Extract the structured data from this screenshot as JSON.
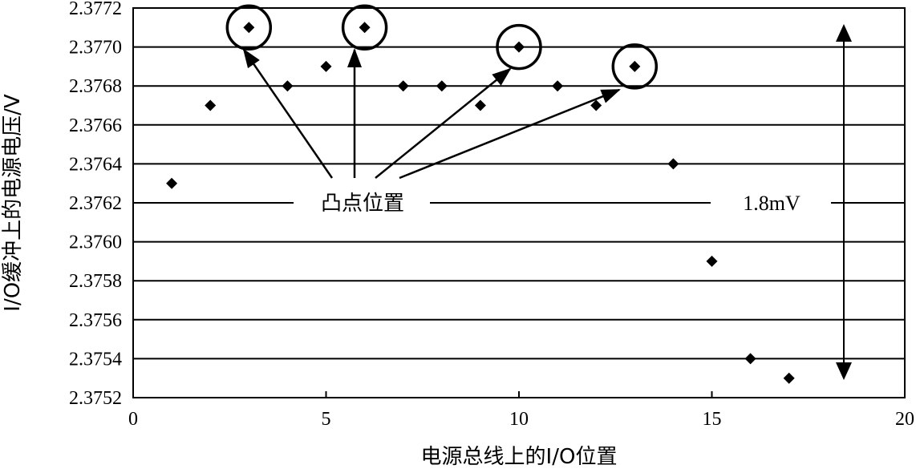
{
  "chart_data": {
    "type": "scatter",
    "title": "",
    "xlabel": "电源总线上的I/O位置",
    "ylabel": "I/O缓冲上的电源电压/V",
    "xlim": [
      0,
      20
    ],
    "ylim": [
      2.3752,
      2.3772
    ],
    "x_ticks": [
      0,
      5,
      10,
      15,
      20
    ],
    "y_ticks": [
      "2.3752",
      "2.3754",
      "2.3756",
      "2.3758",
      "2.3760",
      "2.3762",
      "2.3764",
      "2.3766",
      "2.3768",
      "2.3770",
      "2.3772"
    ],
    "grid": "horizontal",
    "marker": "diamond",
    "points": [
      {
        "x": 1,
        "y": 2.3763
      },
      {
        "x": 2,
        "y": 2.3767
      },
      {
        "x": 3,
        "y": 2.3771
      },
      {
        "x": 4,
        "y": 2.3768
      },
      {
        "x": 5,
        "y": 2.3769
      },
      {
        "x": 6,
        "y": 2.3771
      },
      {
        "x": 7,
        "y": 2.3768
      },
      {
        "x": 8,
        "y": 2.3768
      },
      {
        "x": 9,
        "y": 2.3767
      },
      {
        "x": 10,
        "y": 2.377
      },
      {
        "x": 11,
        "y": 2.3768
      },
      {
        "x": 12,
        "y": 2.3767
      },
      {
        "x": 13,
        "y": 2.3769
      },
      {
        "x": 14,
        "y": 2.3764
      },
      {
        "x": 15,
        "y": 2.3759
      },
      {
        "x": 16,
        "y": 2.3754
      },
      {
        "x": 17,
        "y": 2.3753
      }
    ],
    "highlighted_x": [
      3,
      6,
      10,
      13
    ],
    "annotations": {
      "bump_label": "凸点位置",
      "range_label": "1.8mV"
    }
  }
}
